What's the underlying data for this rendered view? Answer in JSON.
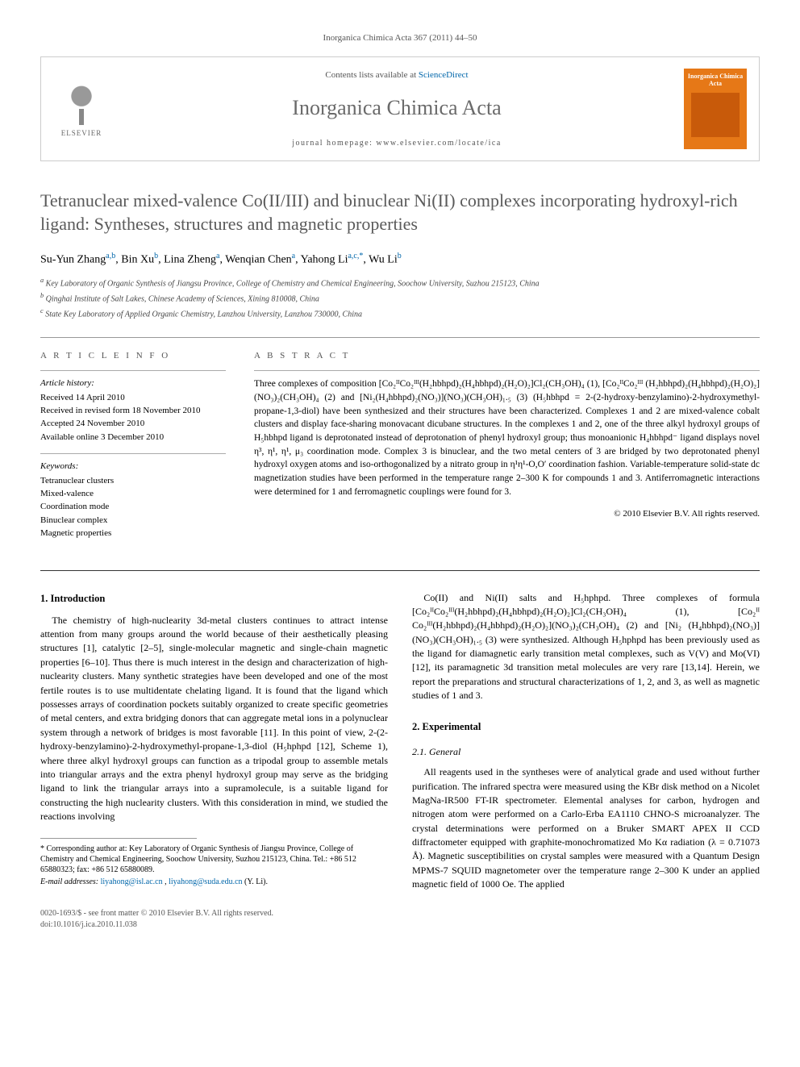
{
  "journal_ref": "Inorganica Chimica Acta 367 (2011) 44–50",
  "header": {
    "elsevier": "ELSEVIER",
    "contents_prefix": "Contents lists available at ",
    "contents_link": "ScienceDirect",
    "journal_name": "Inorganica Chimica Acta",
    "homepage_prefix": "journal homepage: ",
    "homepage_url": "www.elsevier.com/locate/ica",
    "cover_title": "Inorganica Chimica Acta"
  },
  "title": "Tetranuclear mixed-valence Co(II/III) and binuclear Ni(II) complexes incorporating hydroxyl-rich ligand: Syntheses, structures and magnetic properties",
  "authors_html": "Su-Yun Zhang|a,b|, Bin Xu|b|, Lina Zheng|a|, Wenqian Chen|a|, Yahong Li|a,c,*|, Wu Li|b|",
  "affiliations": [
    "a Key Laboratory of Organic Synthesis of Jiangsu Province, College of Chemistry and Chemical Engineering, Soochow University, Suzhou 215123, China",
    "b Qinghai Institute of Salt Lakes, Chinese Academy of Sciences, Xining 810008, China",
    "c State Key Laboratory of Applied Organic Chemistry, Lanzhou University, Lanzhou 730000, China"
  ],
  "article_info": {
    "heading": "A R T I C L E   I N F O",
    "history_label": "Article history:",
    "history": [
      "Received 14 April 2010",
      "Received in revised form 18 November 2010",
      "Accepted 24 November 2010",
      "Available online 3 December 2010"
    ],
    "keywords_label": "Keywords:",
    "keywords": [
      "Tetranuclear clusters",
      "Mixed-valence",
      "Coordination mode",
      "Binuclear complex",
      "Magnetic properties"
    ]
  },
  "abstract": {
    "heading": "A B S T R A C T",
    "text": "Three complexes of composition [Co₂ᴵᴵCo₂ᴵᴵᴵ(H₂hbhpd)₂(H₄hbhpd)₂(H₂O)₂]Cl₂(CH₃OH)₄ (1), [Co₂ᴵᴵCo₂ᴵᴵᴵ (H₂hbhpd)₂(H₄hbhpd)₂(H₂O)₂](NO₃)₂(CH₃OH)₄ (2) and [Ni₂(H₄hbhpd)₂(NO₃)](NO₃)(CH₃OH)₁.₅ (3) (H₅hbhpd = 2-(2-hydroxy-benzylamino)-2-hydroxymethyl-propane-1,3-diol) have been synthesized and their structures have been characterized. Complexes 1 and 2 are mixed-valence cobalt clusters and display face-sharing monovacant dicubane structures. In the complexes 1 and 2, one of the three alkyl hydroxyl groups of H₅hbhpd ligand is deprotonated instead of deprotonation of phenyl hydroxyl group; thus monoanionic H₄hbhpd⁻ ligand displays novel η³, η¹, η¹, μ₃ coordination mode. Complex 3 is binuclear, and the two metal centers of 3 are bridged by two deprotonated phenyl hydroxyl oxygen atoms and iso-orthogonalized by a nitrato group in η¹η¹-O,O′ coordination fashion. Variable-temperature solid-state dc magnetization studies have been performed in the temperature range 2–300 K for compounds 1 and 3. Antiferromagnetic interactions were determined for 1 and ferromagnetic couplings were found for 3.",
    "copyright": "© 2010 Elsevier B.V. All rights reserved."
  },
  "sections": {
    "intro_heading": "1. Introduction",
    "intro_p1": "The chemistry of high-nuclearity 3d-metal clusters continues to attract intense attention from many groups around the world because of their aesthetically pleasing structures [1], catalytic [2–5], single-molecular magnetic and single-chain magnetic properties [6–10]. Thus there is much interest in the design and characterization of high-nuclearity clusters. Many synthetic strategies have been developed and one of the most fertile routes is to use multidentate chelating ligand. It is found that the ligand which possesses arrays of coordination pockets suitably organized to create specific geometries of metal centers, and extra bridging donors that can aggregate metal ions in a polynuclear system through a network of bridges is most favorable [11]. In this point of view, 2-(2-hydroxy-benzylamino)-2-hydroxymethyl-propane-1,3-diol (H₅hphpd [12], Scheme 1), where three alkyl hydroxyl groups can function as a tripodal group to assemble metals into triangular arrays and the extra phenyl hydroxyl group may serve as the bridging ligand to link the triangular arrays into a supramolecule, is a suitable ligand for constructing the high nuclearity clusters. With this consideration in mind, we studied the reactions involving",
    "intro_p2": "Co(II) and Ni(II) salts and H₅hphpd. Three complexes of formula [Co₂ᴵᴵCo₂ᴵᴵᴵ(H₂hbhpd)₂(H₄hbhpd)₂(H₂O)₂]Cl₂(CH₃OH)₄ (1), [Co₂ᴵᴵ Co₂ᴵᴵᴵ(H₂hbhpd)₂(H₄hbhpd)₂(H₂O)₂](NO₃)₂(CH₃OH)₄ (2) and [Ni₂ (H₄hbhpd)₂(NO₃)](NO₃)(CH₃OH)₁.₅ (3) were synthesized. Although H₅hphpd has been previously used as the ligand for diamagnetic early transition metal complexes, such as V(V) and Mo(VI) [12], its paramagnetic 3d transition metal molecules are very rare [13,14]. Herein, we report the preparations and structural characterizations of 1, 2, and 3, as well as magnetic studies of 1 and 3.",
    "exp_heading": "2. Experimental",
    "general_heading": "2.1. General",
    "general_p": "All reagents used in the syntheses were of analytical grade and used without further purification. The infrared spectra were measured using the KBr disk method on a Nicolet MagNa-IR500 FT-IR spectrometer. Elemental analyses for carbon, hydrogen and nitrogen atom were performed on a Carlo-Erba EA1110 CHNO-S microanalyzer. The crystal determinations were performed on a Bruker SMART APEX II CCD diffractometer equipped with graphite-monochromatized Mo Kα radiation (λ = 0.71073 Å). Magnetic susceptibilities on crystal samples were measured with a Quantum Design MPMS-7 SQUID magnetometer over the temperature range 2–300 K under an applied magnetic field of 1000 Oe. The applied"
  },
  "footnote": {
    "corr": "* Corresponding author at: Key Laboratory of Organic Synthesis of Jiangsu Province, College of Chemistry and Chemical Engineering, Soochow University, Suzhou 215123, China. Tel.: +86 512 65880323; fax: +86 512 65880089.",
    "email_label": "E-mail addresses: ",
    "email1": "liyahong@isl.ac.cn",
    "email_sep": ", ",
    "email2": "liyahong@suda.edu.cn",
    "email_suffix": " (Y. Li)."
  },
  "bottom": {
    "left": "0020-1693/$ - see front matter © 2010 Elsevier B.V. All rights reserved.",
    "doi": "doi:10.1016/j.ica.2010.11.038"
  },
  "colors": {
    "link": "#0066aa",
    "orange": "#e67817",
    "gray_text": "#5a5a5a",
    "border": "#cccccc"
  }
}
